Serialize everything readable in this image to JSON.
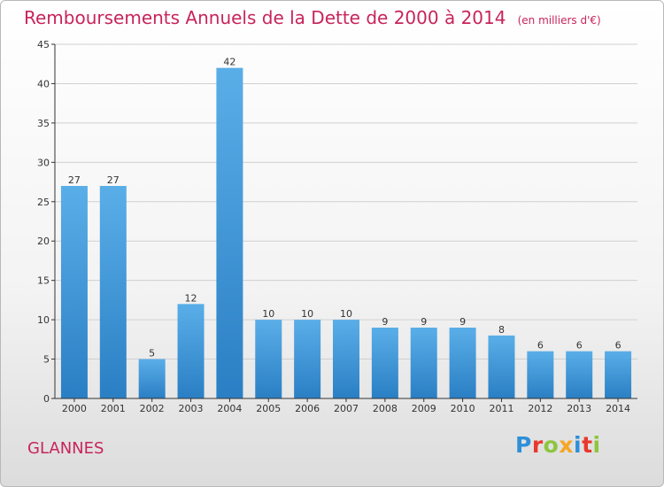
{
  "title": "Remboursements Annuels de la Dette de 2000 à 2014",
  "subtitle": "(en milliers d'€)",
  "commune": "GLANNES",
  "logo": {
    "text": "Proxiti",
    "letters": [
      {
        "ch": "P",
        "color": "#2e8fd8"
      },
      {
        "ch": "r",
        "color": "#e8392c"
      },
      {
        "ch": "o",
        "color": "#8dc63f"
      },
      {
        "ch": "x",
        "color": "#f5a623"
      },
      {
        "ch": "i",
        "color": "#2e8fd8"
      },
      {
        "ch": "t",
        "color": "#e8392c"
      },
      {
        "ch": "i",
        "color": "#8dc63f"
      }
    ]
  },
  "colors": {
    "bar_top": "#5aaee8",
    "bar_bottom": "#2a7fc4",
    "title": "#c8245c",
    "grid": "#d0d0d0"
  },
  "chart_data": {
    "type": "bar",
    "title": "Remboursements Annuels de la Dette de 2000 à 2014",
    "subtitle": "(en milliers d'€)",
    "categories": [
      "2000",
      "2001",
      "2002",
      "2003",
      "2004",
      "2005",
      "2006",
      "2007",
      "2008",
      "2009",
      "2010",
      "2011",
      "2012",
      "2013",
      "2014"
    ],
    "values": [
      27,
      27,
      5,
      12,
      42,
      10,
      10,
      10,
      9,
      9,
      9,
      8,
      6,
      6,
      6
    ],
    "ylim": [
      0,
      45
    ],
    "yticks": [
      0,
      5,
      10,
      15,
      20,
      25,
      30,
      35,
      40,
      45
    ],
    "grid": "horizontal",
    "legend": "none"
  }
}
